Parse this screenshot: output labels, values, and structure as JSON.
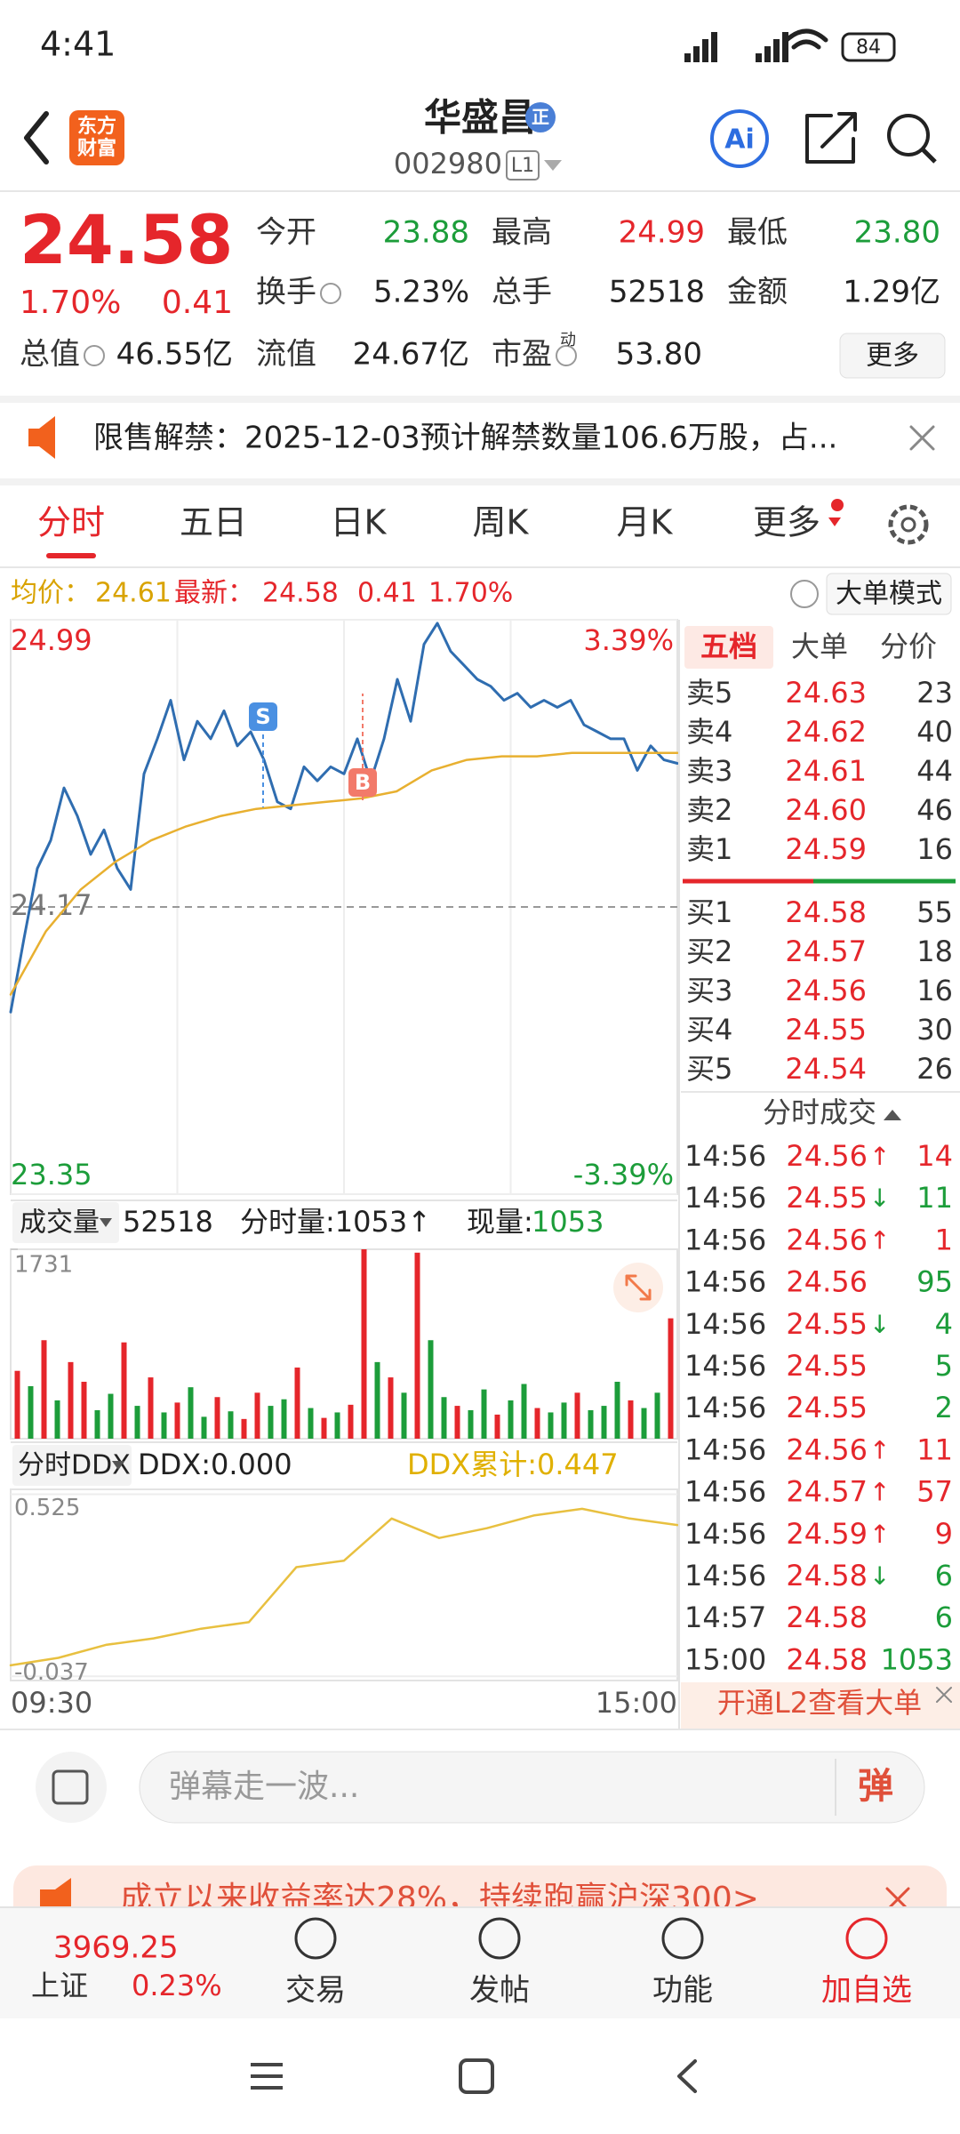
{
  "status_bar": {
    "time": "4:41",
    "battery": "84"
  },
  "header": {
    "logo_lines": [
      "东方",
      "财富"
    ],
    "title": "华盛昌",
    "badge": "正",
    "code": "002980",
    "level": "L1",
    "ai": "Ai"
  },
  "quote": {
    "price": "24.58",
    "change_pct": "1.70%",
    "change": "0.41",
    "rows": [
      [
        {
          "label": "今开",
          "value": "23.88",
          "color": "#1c9d3a"
        },
        {
          "label": "最高",
          "value": "24.99",
          "color": "#e5262b"
        },
        {
          "label": "最低",
          "value": "23.80",
          "color": "#1c9d3a"
        }
      ],
      [
        {
          "label": "换手",
          "value": "5.23%",
          "color": "#222"
        },
        {
          "label": "总手",
          "value": "52518",
          "color": "#222"
        },
        {
          "label": "金额",
          "value": "1.29亿",
          "color": "#222"
        }
      ],
      [
        {
          "label": "总值",
          "value": "46.55亿",
          "color": "#222"
        },
        {
          "label": "流值",
          "value": "24.67亿",
          "color": "#222"
        },
        {
          "label": "市盈",
          "value": "53.80",
          "color": "#222"
        }
      ]
    ],
    "pe_sup": "动",
    "more": "更多"
  },
  "notice": {
    "text": "限售解禁：2025-12-03预计解禁数量106.6万股，占..."
  },
  "tabs": [
    "分时",
    "五日",
    "日K",
    "周K",
    "月K",
    "更多"
  ],
  "info": {
    "avg": "24.61",
    "last": "24.58",
    "change": "0.41",
    "pct": "1.70%",
    "mode": "大单模式"
  },
  "chart_data": [
    {
      "type": "line",
      "ylim": [
        23.35,
        24.99
      ],
      "yticks": [
        23.35,
        24.17,
        24.99
      ],
      "right_labels": [
        "-3.39%",
        "3.39%"
      ],
      "xlabels": [
        "09:30",
        "15:00"
      ],
      "markers": [
        "S",
        "B"
      ],
      "grid": true,
      "series": [
        {
          "name": "最新：",
          "color": "#2f6db0",
          "values": [
            23.87,
            24.08,
            24.28,
            24.36,
            24.51,
            24.43,
            24.32,
            24.39,
            24.28,
            24.22,
            24.55,
            24.65,
            24.76,
            24.59,
            24.7,
            24.65,
            24.73,
            24.63,
            24.67,
            24.59,
            24.47,
            24.45,
            24.57,
            24.53,
            24.57,
            24.55,
            24.65,
            24.53,
            24.65,
            24.82,
            24.7,
            24.92,
            24.98,
            24.9,
            24.86,
            24.82,
            24.8,
            24.76,
            24.78,
            24.74,
            24.76,
            24.74,
            24.76,
            24.69,
            24.67,
            24.65,
            24.65,
            24.56,
            24.63,
            24.59,
            24.58
          ]
        },
        {
          "name": "均价：",
          "color": "#e8b030",
          "values": [
            23.92,
            24.1,
            24.22,
            24.3,
            24.36,
            24.4,
            24.43,
            24.45,
            24.46,
            24.47,
            24.48,
            24.5,
            24.56,
            24.59,
            24.6,
            24.6,
            24.61,
            24.61,
            24.61,
            24.61
          ]
        }
      ]
    },
    {
      "type": "bar",
      "title": "成交量",
      "total": "52518",
      "minute_vol": "分时量:1053↑",
      "cur_label": "现量:",
      "cur": "1053",
      "ylim": [
        0,
        1731
      ],
      "yticks": [
        1731
      ],
      "values": [
        620,
        480,
        900,
        350,
        700,
        520,
        260,
        410,
        880,
        300,
        560,
        240,
        330,
        470,
        200,
        380,
        250,
        180,
        420,
        300,
        360,
        650,
        280,
        190,
        240,
        310,
        1731,
        700,
        560,
        420,
        1700,
        900,
        380,
        300,
        260,
        450,
        220,
        350,
        500,
        280,
        240,
        330,
        420,
        260,
        300,
        520,
        350,
        280,
        420,
        1100
      ],
      "colors": [
        "#e5262b",
        "#1c9d3a",
        "#e5262b",
        "#1c9d3a",
        "#e5262b",
        "#e5262b",
        "#1c9d3a",
        "#1c9d3a",
        "#e5262b",
        "#1c9d3a",
        "#e5262b",
        "#1c9d3a",
        "#e5262b",
        "#1c9d3a",
        "#1c9d3a",
        "#e5262b",
        "#1c9d3a",
        "#e5262b",
        "#e5262b",
        "#1c9d3a",
        "#1c9d3a",
        "#e5262b",
        "#1c9d3a",
        "#e5262b",
        "#1c9d3a",
        "#e5262b",
        "#e5262b",
        "#1c9d3a",
        "#e5262b",
        "#1c9d3a",
        "#e5262b",
        "#1c9d3a",
        "#1c9d3a",
        "#e5262b",
        "#1c9d3a",
        "#1c9d3a",
        "#e5262b",
        "#1c9d3a",
        "#1c9d3a",
        "#e5262b",
        "#1c9d3a",
        "#1c9d3a",
        "#e5262b",
        "#1c9d3a",
        "#1c9d3a",
        "#1c9d3a",
        "#e5262b",
        "#1c9d3a",
        "#1c9d3a",
        "#e5262b"
      ]
    },
    {
      "type": "line",
      "title": "分时DDX",
      "ddx": "DDX:0.000",
      "ddx_total": "DDX累计:0.447",
      "ylim": [
        -0.05,
        0.54
      ],
      "yticks": [
        -0.037,
        0.525
      ],
      "color": "#e8c040",
      "values": [
        -0.003,
        0.02,
        0.06,
        0.08,
        0.11,
        0.13,
        0.3,
        0.32,
        0.45,
        0.39,
        0.42,
        0.46,
        0.48,
        0.45,
        0.43
      ]
    }
  ],
  "order_book": {
    "tabs": [
      "五档",
      "大单",
      "分价"
    ],
    "sells": [
      {
        "label": "卖5",
        "price": "24.63",
        "vol": "23"
      },
      {
        "label": "卖4",
        "price": "24.62",
        "vol": "40"
      },
      {
        "label": "卖3",
        "price": "24.61",
        "vol": "44"
      },
      {
        "label": "卖2",
        "price": "24.60",
        "vol": "46"
      },
      {
        "label": "卖1",
        "price": "24.59",
        "vol": "16"
      }
    ],
    "buys": [
      {
        "label": "买1",
        "price": "24.58",
        "vol": "55"
      },
      {
        "label": "买2",
        "price": "24.57",
        "vol": "18"
      },
      {
        "label": "买3",
        "price": "24.56",
        "vol": "16"
      },
      {
        "label": "买4",
        "price": "24.55",
        "vol": "30"
      },
      {
        "label": "买5",
        "price": "24.54",
        "vol": "26"
      }
    ]
  },
  "trades": {
    "title": "分时成交",
    "rows": [
      {
        "time": "14:56",
        "price": "24.56",
        "arrow": "↑",
        "vol": "14",
        "color": "#e5262b"
      },
      {
        "time": "14:56",
        "price": "24.55",
        "arrow": "↓",
        "vol": "11",
        "color": "#1c9d3a"
      },
      {
        "time": "14:56",
        "price": "24.56",
        "arrow": "↑",
        "vol": "1",
        "color": "#e5262b"
      },
      {
        "time": "14:56",
        "price": "24.56",
        "arrow": "",
        "vol": "95",
        "color": "#1c9d3a"
      },
      {
        "time": "14:56",
        "price": "24.55",
        "arrow": "↓",
        "vol": "4",
        "color": "#1c9d3a"
      },
      {
        "time": "14:56",
        "price": "24.55",
        "arrow": "",
        "vol": "5",
        "color": "#1c9d3a"
      },
      {
        "time": "14:56",
        "price": "24.55",
        "arrow": "",
        "vol": "2",
        "color": "#1c9d3a"
      },
      {
        "time": "14:56",
        "price": "24.56",
        "arrow": "↑",
        "vol": "11",
        "color": "#e5262b"
      },
      {
        "time": "14:56",
        "price": "24.57",
        "arrow": "↑",
        "vol": "57",
        "color": "#e5262b"
      },
      {
        "time": "14:56",
        "price": "24.59",
        "arrow": "↑",
        "vol": "9",
        "color": "#e5262b"
      },
      {
        "time": "14:56",
        "price": "24.58",
        "arrow": "↓",
        "vol": "6",
        "color": "#1c9d3a"
      },
      {
        "time": "14:57",
        "price": "24.58",
        "arrow": "",
        "vol": "6",
        "color": "#1c9d3a"
      },
      {
        "time": "15:00",
        "price": "24.58",
        "arrow": "",
        "vol": "1053",
        "color": "#1c9d3a"
      }
    ],
    "l2": "开通L2查看大单"
  },
  "comment": {
    "placeholder": "弹幕走一波...",
    "button": "弹"
  },
  "banner": {
    "text": "成立以来收益率达28%，持续跑赢沪深300>"
  },
  "bottom_nav": {
    "index_value": "3969.25",
    "index_name": "上证",
    "index_pct": "0.23%",
    "items": [
      "交易",
      "发帖",
      "功能",
      "加自选"
    ]
  }
}
